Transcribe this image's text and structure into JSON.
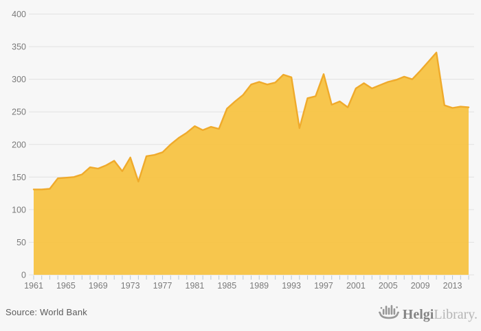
{
  "chart_data": {
    "type": "area",
    "x": [
      1961,
      1962,
      1963,
      1964,
      1965,
      1966,
      1967,
      1968,
      1969,
      1970,
      1971,
      1972,
      1973,
      1974,
      1975,
      1976,
      1977,
      1978,
      1979,
      1980,
      1981,
      1982,
      1983,
      1984,
      1985,
      1986,
      1987,
      1988,
      1989,
      1990,
      1991,
      1992,
      1993,
      1994,
      1995,
      1996,
      1997,
      1998,
      1999,
      2000,
      2001,
      2002,
      2003,
      2004,
      2005,
      2006,
      2007,
      2008,
      2009,
      2010,
      2011,
      2012,
      2013,
      2014,
      2015
    ],
    "values": [
      131,
      131,
      132,
      148,
      149,
      150,
      154,
      165,
      163,
      168,
      175,
      159,
      180,
      143,
      182,
      184,
      188,
      200,
      210,
      218,
      228,
      222,
      227,
      224,
      255,
      266,
      276,
      292,
      296,
      292,
      295,
      307,
      303,
      225,
      271,
      274,
      308,
      261,
      266,
      257,
      286,
      294,
      286,
      291,
      296,
      299,
      304,
      300,
      313,
      327,
      341,
      260,
      256,
      258,
      257
    ],
    "title": "",
    "xlabel": "",
    "ylabel": "",
    "ylim": [
      0,
      400
    ],
    "yticks": [
      0,
      50,
      100,
      150,
      200,
      250,
      300,
      350,
      400
    ],
    "xtick_labels": [
      "1961",
      "1965",
      "1969",
      "1973",
      "1977",
      "1981",
      "1985",
      "1989",
      "1993",
      "1997",
      "2001",
      "2005",
      "2009",
      "2013"
    ],
    "xtick_label_every": 4,
    "grid": true,
    "legend": false
  },
  "colors": {
    "background": "#f7f7f7",
    "gridline": "#e2e2e2",
    "area_fill": "#f6c242",
    "area_line": "#efaa2b",
    "tick": "#b9c7d4",
    "axis_label": "#7a7a7a",
    "source_text": "#5b5b5b",
    "logo_dark": "#848484",
    "logo_light": "#b5b5b5"
  },
  "footer": {
    "source": "Source: World Bank",
    "logo": {
      "part1": "Helgi",
      "part2": "Library."
    }
  }
}
